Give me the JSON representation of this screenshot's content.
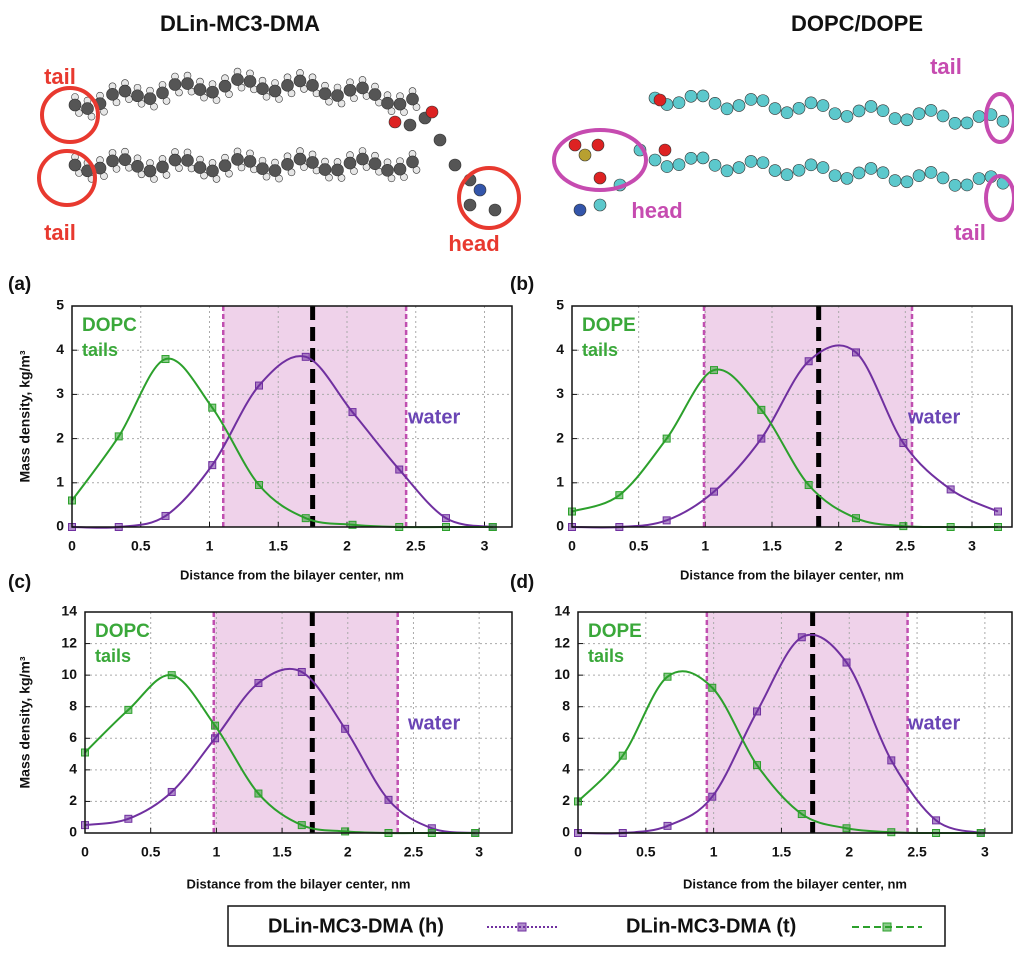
{
  "molecules": [
    {
      "title": "DLin-MC3-DMA",
      "labels": [
        "tail",
        "tail",
        "head"
      ]
    },
    {
      "title": "DOPC/DOPE",
      "labels": [
        "tail",
        "head",
        "tail"
      ]
    }
  ],
  "chart_data": [
    {
      "type": "line",
      "panel_label": "(a)",
      "ylabel": "Mass density, kg/m³",
      "xlabel": "Distance from the bilayer center, nm",
      "annotations": [
        "DOPC",
        "tails",
        "water"
      ],
      "x": [
        0,
        0.34,
        0.68,
        1.02,
        1.36,
        1.7,
        2.04,
        2.38,
        2.72,
        3.06
      ],
      "series": [
        {
          "name": "DLin-MC3-DMA (h)",
          "color": "#7030a0",
          "values": [
            0,
            0,
            0.25,
            1.4,
            3.2,
            3.85,
            2.6,
            1.3,
            0.2,
            0
          ]
        },
        {
          "name": "DLin-MC3-DMA (t)",
          "color": "#2ca02c",
          "values": [
            0.6,
            2.05,
            3.8,
            2.7,
            0.95,
            0.2,
            0.05,
            0,
            0,
            0
          ]
        }
      ],
      "shaded_region": [
        1.1,
        2.43
      ],
      "reference_line": 1.75,
      "xlim": [
        0,
        3.2
      ],
      "ylim": [
        0,
        5
      ],
      "xticks": [
        0,
        0.5,
        1,
        1.5,
        2,
        2.5,
        3
      ],
      "yticks": [
        0,
        1,
        2,
        3,
        4,
        5
      ],
      "grid": true
    },
    {
      "type": "line",
      "panel_label": "(b)",
      "xlabel": "Distance from the bilayer center, nm",
      "annotations": [
        "DOPE",
        "tails",
        "water"
      ],
      "x": [
        0,
        0.355,
        0.71,
        1.065,
        1.42,
        1.775,
        2.13,
        2.485,
        2.84,
        3.195
      ],
      "series": [
        {
          "color": "#7030a0",
          "values": [
            0,
            0,
            0.15,
            0.8,
            2.0,
            3.75,
            3.95,
            1.9,
            0.85,
            0.35
          ]
        },
        {
          "color": "#2ca02c",
          "values": [
            0.35,
            0.72,
            2.0,
            3.55,
            2.65,
            0.95,
            0.2,
            0.02,
            0,
            0
          ]
        }
      ],
      "shaded_region": [
        0.99,
        2.55
      ],
      "reference_line": 1.85,
      "xlim": [
        0,
        3.3
      ],
      "ylim": [
        0,
        5
      ],
      "xticks": [
        0,
        0.5,
        1,
        1.5,
        2,
        2.5,
        3
      ],
      "yticks": [
        0,
        1,
        2,
        3,
        4,
        5
      ],
      "grid": true
    },
    {
      "type": "line",
      "panel_label": "(c)",
      "ylabel": "Mass density, kg/m³",
      "xlabel": "Distance from the bilayer center, nm",
      "annotations": [
        "DOPC",
        "tails",
        "water"
      ],
      "x": [
        0,
        0.33,
        0.66,
        0.99,
        1.32,
        1.65,
        1.98,
        2.31,
        2.64,
        2.97
      ],
      "series": [
        {
          "color": "#7030a0",
          "values": [
            0.5,
            0.9,
            2.6,
            6.0,
            9.5,
            10.2,
            6.6,
            2.1,
            0.3,
            0
          ]
        },
        {
          "color": "#2ca02c",
          "values": [
            5.1,
            7.8,
            10.0,
            6.8,
            2.5,
            0.5,
            0.1,
            0,
            0,
            0
          ]
        }
      ],
      "shaded_region": [
        0.98,
        2.38
      ],
      "reference_line": 1.73,
      "xlim": [
        0,
        3.25
      ],
      "ylim": [
        0,
        14
      ],
      "xticks": [
        0,
        0.5,
        1,
        1.5,
        2,
        2.5,
        3
      ],
      "yticks": [
        0,
        2,
        4,
        6,
        8,
        10,
        12,
        14
      ],
      "grid": true
    },
    {
      "type": "line",
      "panel_label": "(d)",
      "xlabel": "Distance from the bilayer center, nm",
      "annotations": [
        "DOPE",
        "tails",
        "water"
      ],
      "x": [
        0,
        0.33,
        0.66,
        0.99,
        1.32,
        1.65,
        1.98,
        2.31,
        2.64,
        2.97
      ],
      "series": [
        {
          "color": "#7030a0",
          "values": [
            0,
            0,
            0.45,
            2.3,
            7.7,
            12.4,
            10.8,
            4.6,
            0.8,
            0
          ]
        },
        {
          "color": "#2ca02c",
          "values": [
            2.0,
            4.9,
            9.9,
            9.2,
            4.3,
            1.2,
            0.3,
            0.05,
            0,
            0
          ]
        }
      ],
      "shaded_region": [
        0.95,
        2.43
      ],
      "reference_line": 1.73,
      "xlim": [
        0,
        3.2
      ],
      "ylim": [
        0,
        14
      ],
      "xticks": [
        0,
        0.5,
        1,
        1.5,
        2,
        2.5,
        3
      ],
      "yticks": [
        0,
        2,
        4,
        6,
        8,
        10,
        12,
        14
      ],
      "grid": true
    }
  ]
}
